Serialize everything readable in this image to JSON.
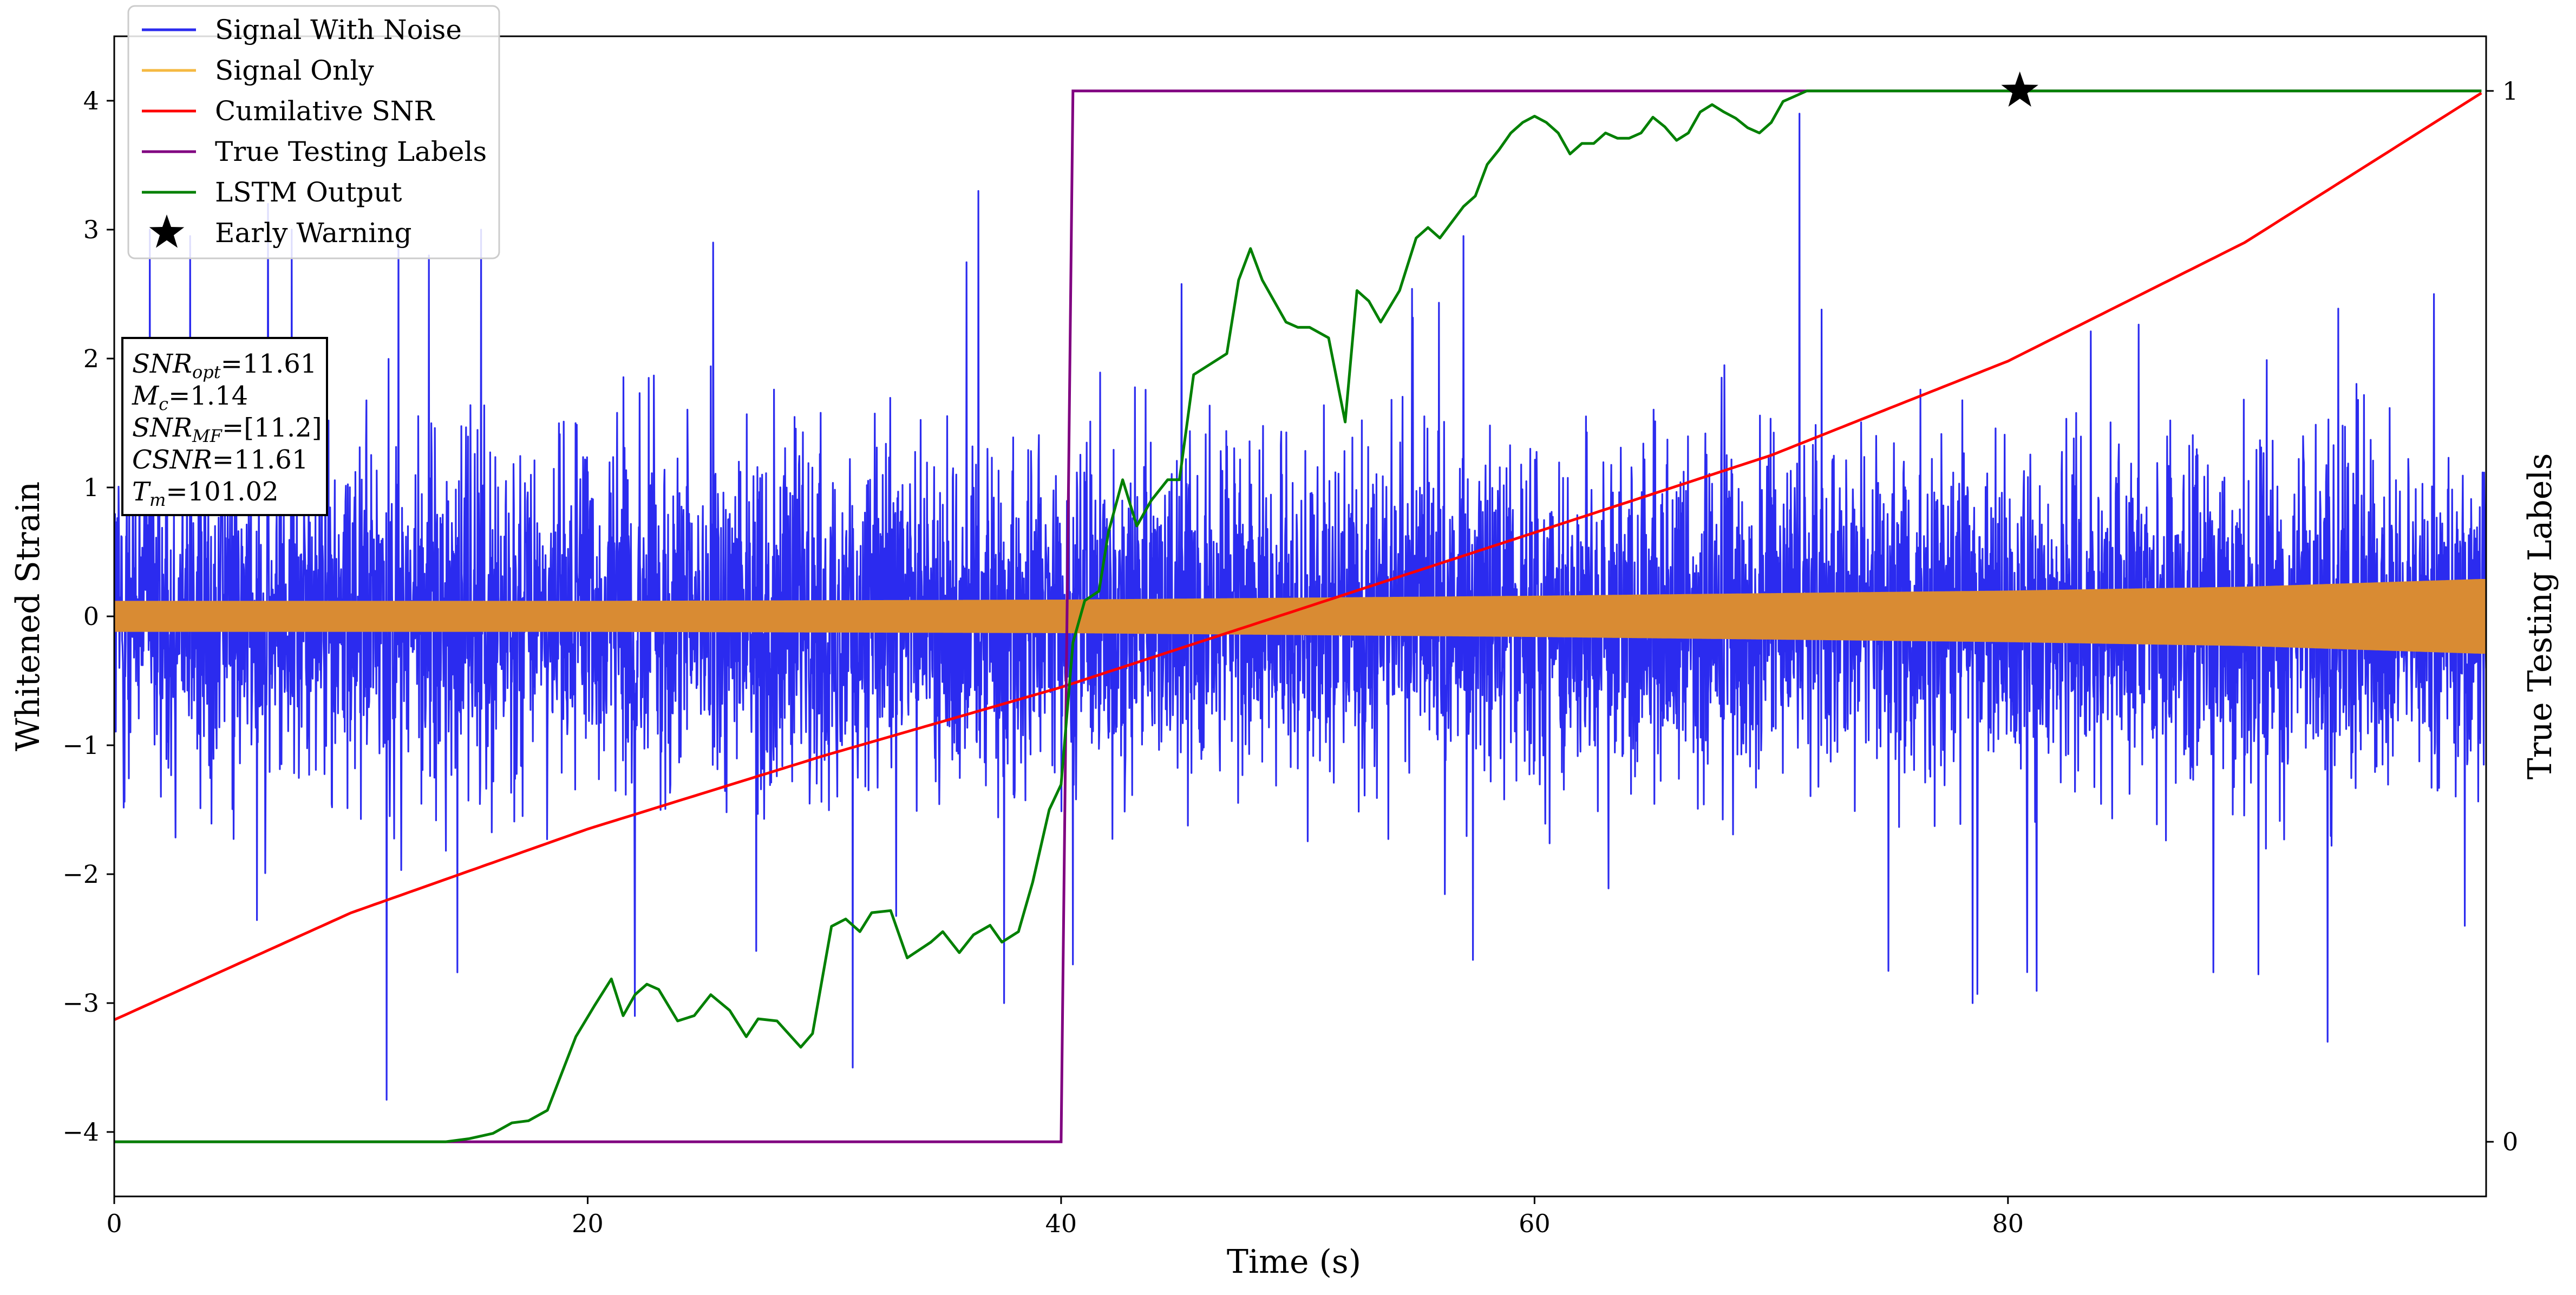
{
  "chart_data": {
    "type": "line",
    "title": "",
    "xlabel": "Time (s)",
    "ylabel": "Whitened Strain",
    "y2label": "True Testing Labels",
    "xlim": [
      0,
      100.2
    ],
    "ylim": [
      -4.5,
      4.5
    ],
    "y2lim": [
      -0.052,
      1.052
    ],
    "xticks": [
      0,
      20,
      40,
      60,
      80
    ],
    "yticks": [
      -4,
      -3,
      -2,
      -1,
      0,
      1,
      2,
      3,
      4
    ],
    "y2ticks": [
      0,
      1
    ],
    "xtick_labels": [
      "0",
      "20",
      "40",
      "60",
      "80"
    ],
    "ytick_labels": [
      "−4",
      "−3",
      "−2",
      "−1",
      "0",
      "1",
      "2",
      "3",
      "4"
    ],
    "y2tick_labels": [
      "0",
      "1"
    ],
    "grid": false,
    "legend": {
      "placement": "top-left",
      "entries": [
        {
          "label": "Signal With Noise",
          "color": "#2b2bef",
          "marker": "line"
        },
        {
          "label": "Signal Only",
          "color": "#f5a623",
          "marker": "line"
        },
        {
          "label": "Cumilative SNR",
          "color": "#ff0000",
          "marker": "line"
        },
        {
          "label": "True Testing Labels",
          "color": "#800080",
          "marker": "line"
        },
        {
          "label": "LSTM Output",
          "color": "#008000",
          "marker": "line"
        },
        {
          "label": "Early Warning",
          "color": "#000000",
          "marker": "star"
        }
      ]
    },
    "info_box": {
      "placement": "left",
      "lines": [
        {
          "base": "SNR",
          "sub": "opt",
          "value": "=11.61"
        },
        {
          "base": "M",
          "sub": "c",
          "value": "=1.14"
        },
        {
          "base": "SNR",
          "sub": "MF",
          "value": "=[11.2]"
        },
        {
          "base": "CSNR",
          "sub": "",
          "value": "=11.61"
        },
        {
          "base": "T",
          "sub": "m",
          "value": "=101.02"
        }
      ]
    },
    "series": [
      {
        "name": "Signal With Noise",
        "color": "#2b2bef",
        "axis": "left",
        "noise_envelope": {
          "x": [
            0,
            10,
            20,
            30,
            40,
            50,
            60,
            70,
            80,
            90,
            100
          ],
          "typical_upper": [
            1.6,
            1.7,
            1.7,
            1.6,
            1.6,
            1.5,
            1.6,
            1.6,
            1.6,
            1.6,
            1.5
          ],
          "typical_lower": [
            -1.6,
            -1.7,
            -1.7,
            -1.6,
            -1.6,
            -1.6,
            -1.6,
            -1.6,
            -1.6,
            -1.6,
            -1.6
          ]
        },
        "peaks": [
          {
            "x": 1.5,
            "y": 3.0
          },
          {
            "x": 3.2,
            "y": 2.95
          },
          {
            "x": 6.5,
            "y": 3.2
          },
          {
            "x": 7.5,
            "y": 3.0
          },
          {
            "x": 11.5,
            "y": -3.75
          },
          {
            "x": 12.0,
            "y": 3.0
          },
          {
            "x": 13.3,
            "y": 2.8
          },
          {
            "x": 15.5,
            "y": 3.0
          },
          {
            "x": 22.0,
            "y": -3.1
          },
          {
            "x": 25.3,
            "y": 2.9
          },
          {
            "x": 31.2,
            "y": -3.5
          },
          {
            "x": 36.5,
            "y": 3.3
          },
          {
            "x": 37.6,
            "y": -3.0
          },
          {
            "x": 40.5,
            "y": -2.7
          },
          {
            "x": 57.0,
            "y": 2.95
          },
          {
            "x": 71.2,
            "y": 3.9
          },
          {
            "x": 78.5,
            "y": -3.0
          },
          {
            "x": 93.5,
            "y": -3.3
          },
          {
            "x": 98.0,
            "y": 2.5
          },
          {
            "x": 99.3,
            "y": -2.4
          }
        ]
      },
      {
        "name": "Signal Only",
        "color": "#f5a623",
        "axis": "left",
        "amplitude_envelope": {
          "x": [
            0,
            20,
            40,
            60,
            80,
            90,
            100
          ],
          "amplitude": [
            0.12,
            0.12,
            0.13,
            0.16,
            0.2,
            0.23,
            0.29
          ]
        }
      },
      {
        "name": "Cumilative SNR",
        "color": "#ff0000",
        "axis": "left",
        "x": [
          0,
          10,
          20,
          30,
          40,
          50,
          60,
          70,
          80,
          90,
          100
        ],
        "y": [
          -3.13,
          -2.3,
          -1.65,
          -1.08,
          -0.55,
          0.05,
          0.65,
          1.25,
          1.98,
          2.9,
          4.06
        ]
      },
      {
        "name": "True Testing Labels",
        "color": "#800080",
        "axis": "right",
        "x": [
          0,
          40.0,
          40.5,
          100
        ],
        "y": [
          0,
          0,
          1,
          1
        ]
      },
      {
        "name": "LSTM Output",
        "color": "#008000",
        "axis": "right",
        "x": [
          0,
          14,
          15,
          16,
          16.8,
          17.5,
          18.3,
          19.5,
          20.3,
          21.0,
          21.5,
          22.0,
          22.5,
          23.0,
          23.8,
          24.5,
          25.2,
          26.0,
          26.7,
          27.2,
          28.0,
          29.0,
          29.5,
          30.3,
          30.9,
          31.5,
          32.0,
          32.8,
          33.5,
          34.5,
          35.0,
          35.7,
          36.3,
          37.0,
          37.5,
          38.2,
          38.8,
          39.5,
          40.0,
          40.5,
          41.0,
          41.6,
          42.0,
          42.6,
          43.2,
          43.8,
          44.5,
          45.0,
          45.6,
          46.3,
          47.0,
          47.5,
          48.0,
          48.5,
          49.0,
          49.5,
          50.0,
          50.5,
          51.3,
          52.0,
          52.5,
          53.0,
          53.5,
          54.3,
          55.0,
          55.5,
          56.0,
          56.5,
          57.0,
          57.5,
          58.0,
          58.5,
          59.0,
          59.5,
          60.0,
          60.5,
          61.0,
          61.5,
          62.0,
          62.5,
          63.0,
          63.5,
          64.0,
          64.5,
          65.0,
          65.5,
          66.0,
          66.5,
          67.0,
          67.5,
          68.0,
          68.5,
          69.0,
          69.5,
          70.0,
          70.5,
          71.0,
          71.5,
          72.0,
          73.0,
          74.0,
          75.0,
          76.0,
          77.0,
          78.0,
          79.0,
          80.0,
          80.5,
          100
        ],
        "y": [
          0,
          0,
          0.003,
          0.008,
          0.018,
          0.02,
          0.03,
          0.1,
          0.13,
          0.155,
          0.12,
          0.14,
          0.15,
          0.145,
          0.115,
          0.12,
          0.14,
          0.125,
          0.1,
          0.117,
          0.115,
          0.09,
          0.103,
          0.205,
          0.212,
          0.2,
          0.218,
          0.22,
          0.175,
          0.19,
          0.2,
          0.18,
          0.197,
          0.206,
          0.19,
          0.2,
          0.247,
          0.316,
          0.34,
          0.475,
          0.515,
          0.524,
          0.58,
          0.63,
          0.586,
          0.61,
          0.63,
          0.63,
          0.73,
          0.74,
          0.75,
          0.82,
          0.85,
          0.82,
          0.8,
          0.78,
          0.775,
          0.775,
          0.765,
          0.685,
          0.81,
          0.8,
          0.78,
          0.81,
          0.86,
          0.87,
          0.86,
          0.875,
          0.89,
          0.9,
          0.93,
          0.944,
          0.96,
          0.97,
          0.976,
          0.97,
          0.96,
          0.94,
          0.95,
          0.95,
          0.96,
          0.955,
          0.955,
          0.96,
          0.975,
          0.966,
          0.953,
          0.96,
          0.98,
          0.987,
          0.98,
          0.974,
          0.965,
          0.96,
          0.97,
          0.99,
          0.995,
          1.0,
          1.0,
          1.0,
          1.0,
          1.0,
          1.0,
          1.0,
          1.0,
          1.0,
          1.0,
          1.0,
          1.0
        ]
      }
    ],
    "early_warning": {
      "x": 80.5,
      "y": 1.0,
      "axis": "right"
    }
  }
}
